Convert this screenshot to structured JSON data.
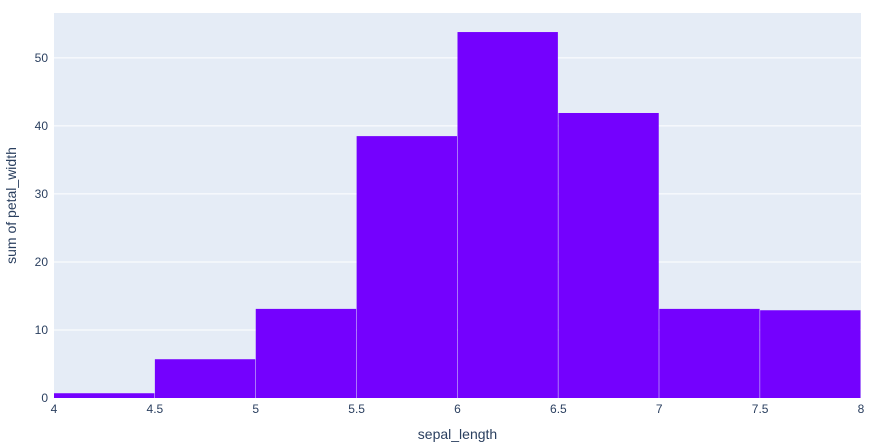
{
  "chart_data": {
    "type": "bar",
    "histogram": true,
    "bins": [
      {
        "x0": 4.0,
        "x1": 4.5,
        "value": 0.7
      },
      {
        "x0": 4.5,
        "x1": 5.0,
        "value": 5.7
      },
      {
        "x0": 5.0,
        "x1": 5.5,
        "value": 13.1
      },
      {
        "x0": 5.5,
        "x1": 6.0,
        "value": 38.5
      },
      {
        "x0": 6.0,
        "x1": 6.5,
        "value": 53.8
      },
      {
        "x0": 6.5,
        "x1": 7.0,
        "value": 41.9
      },
      {
        "x0": 7.0,
        "x1": 7.5,
        "value": 13.1
      },
      {
        "x0": 7.5,
        "x1": 8.0,
        "value": 12.9
      }
    ],
    "xlabel": "sepal_length",
    "ylabel": "sum of petal_width",
    "xlim": [
      4,
      8
    ],
    "ylim": [
      0,
      56.6
    ],
    "xticks": [
      "4",
      "4.5",
      "5",
      "5.5",
      "6",
      "6.5",
      "7",
      "7.5",
      "8"
    ],
    "yticks": [
      "0",
      "10",
      "20",
      "30",
      "40",
      "50"
    ],
    "grid": true,
    "bar_color": "#7401fe",
    "plot_background": "#e5ecf6",
    "text_color": "#2a3f5f"
  }
}
